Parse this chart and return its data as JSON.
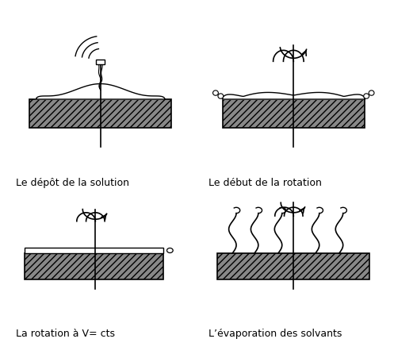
{
  "labels": [
    "Le dépôt de la solution",
    "Le début de la rotation",
    "La rotation à V= cts",
    "L’évaporation des solvants"
  ],
  "hatch_color": "#000000",
  "substrate_fc": "#888888"
}
